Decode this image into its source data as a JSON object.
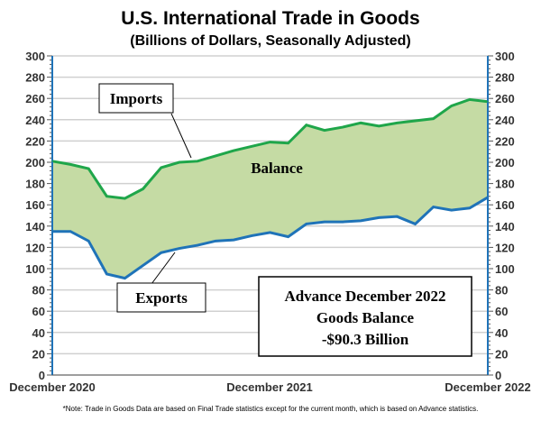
{
  "chart_data": {
    "type": "area",
    "title": "U.S. International Trade in Goods",
    "subtitle": "(Billions of Dollars, Seasonally Adjusted)",
    "ylim": [
      0,
      300
    ],
    "yticks": [
      0,
      20,
      40,
      60,
      80,
      100,
      120,
      140,
      160,
      180,
      200,
      220,
      240,
      260,
      280,
      300
    ],
    "xtick_labels": [
      "December 2020",
      "December 2021",
      "December 2022"
    ],
    "grid": true,
    "series": [
      {
        "name": "Imports",
        "color": "#1fa64a",
        "values": [
          201,
          198,
          194,
          168,
          166,
          175,
          195,
          200,
          201,
          206,
          211,
          215,
          219,
          218,
          235,
          230,
          233,
          237,
          234,
          237,
          239,
          241,
          253,
          259,
          257
        ]
      },
      {
        "name": "Exports",
        "color": "#1f73b8",
        "values": [
          135,
          135,
          126,
          95,
          91,
          103,
          115,
          119,
          122,
          126,
          127,
          131,
          134,
          130,
          142,
          144,
          144,
          145,
          148,
          149,
          142,
          158,
          155,
          157,
          167
        ]
      }
    ],
    "fill_color": "#c5dba4",
    "labels": {
      "imports": "Imports",
      "exports": "Exports",
      "balance": "Balance"
    },
    "annotation": [
      "Advance December 2022",
      "Goods Balance",
      "-$90.3 Billion"
    ],
    "note": "*Note: Trade in Goods Data are based on Final Trade statistics except for the current month, which is based on Advance statistics."
  }
}
